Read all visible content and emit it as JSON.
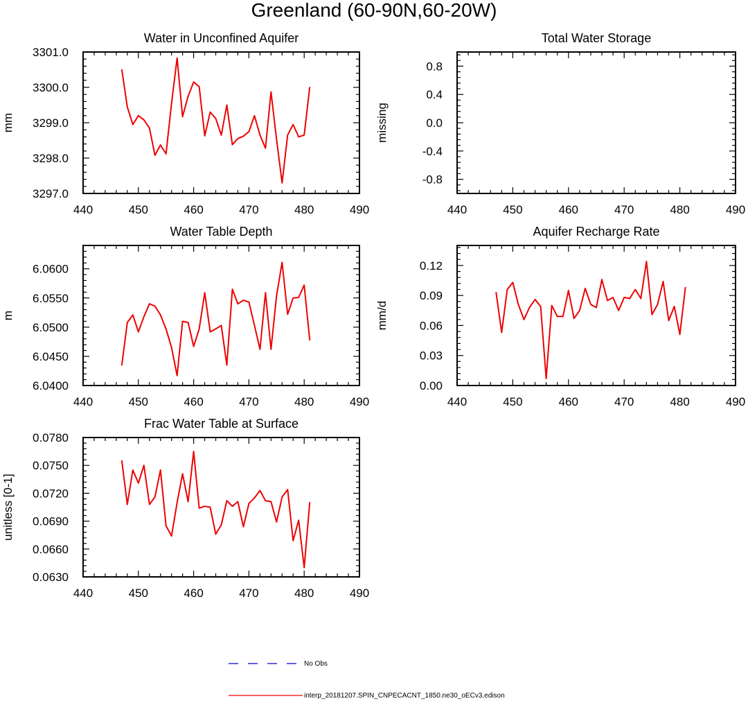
{
  "figure_title": "Greenland (60-90N,60-20W)",
  "legend": {
    "obs_label": "No Obs",
    "model_label": "interp_20181207.SPIN_CNPECACNT_1850.ne30_oECv3.edison",
    "obs_color": "#0000cc",
    "model_color": "#ee0000"
  },
  "chart_data": [
    {
      "type": "line",
      "title": "Water in Unconfined Aquifer",
      "ylabel": "mm",
      "xlabel": "",
      "xlim": [
        440,
        490
      ],
      "ylim": [
        3297.0,
        3301.0
      ],
      "xticks": [
        440,
        450,
        460,
        470,
        480,
        490
      ],
      "yticks": [
        3297.0,
        3298.0,
        3299.0,
        3300.0,
        3301.0
      ],
      "ytick_labels": [
        "3297.0",
        "3298.0",
        "3299.0",
        "3300.0",
        "3301.0"
      ],
      "x": [
        447,
        448,
        449,
        450,
        451,
        452,
        453,
        454,
        455,
        456,
        457,
        458,
        459,
        460,
        461,
        462,
        463,
        464,
        465,
        466,
        467,
        468,
        469,
        470,
        471,
        472,
        473,
        474,
        475,
        476,
        477,
        478,
        479,
        480,
        481
      ],
      "series": [
        {
          "name": "interp_20181207.SPIN_CNPECACNT_1850.ne30_oECv3.edison",
          "values": [
            3300.5,
            3299.45,
            3298.95,
            3299.2,
            3299.08,
            3298.85,
            3298.08,
            3298.37,
            3298.12,
            3299.55,
            3300.83,
            3299.17,
            3299.75,
            3300.15,
            3300.02,
            3298.63,
            3299.3,
            3299.12,
            3298.65,
            3299.5,
            3298.38,
            3298.55,
            3298.62,
            3298.75,
            3299.2,
            3298.65,
            3298.28,
            3299.87,
            3298.53,
            3297.3,
            3298.65,
            3298.95,
            3298.6,
            3298.65,
            3300.0
          ]
        }
      ]
    },
    {
      "type": "line",
      "title": "Total Water Storage",
      "ylabel": "missing",
      "xlabel": "",
      "xlim": [
        440,
        490
      ],
      "ylim": [
        -1.0,
        1.0
      ],
      "xticks": [
        440,
        450,
        460,
        470,
        480,
        490
      ],
      "yticks": [
        -0.8,
        -0.4,
        0.0,
        0.4,
        0.8
      ],
      "ytick_labels": [
        "-0.8",
        "-0.4",
        "0.0",
        "0.4",
        "0.8"
      ],
      "x": [],
      "series": []
    },
    {
      "type": "line",
      "title": "Water Table Depth",
      "ylabel": "m",
      "xlabel": "",
      "xlim": [
        440,
        490
      ],
      "ylim": [
        6.04,
        6.064
      ],
      "xticks": [
        440,
        450,
        460,
        470,
        480,
        490
      ],
      "yticks": [
        6.04,
        6.045,
        6.05,
        6.055,
        6.06
      ],
      "ytick_labels": [
        "6.0400",
        "6.0450",
        "6.0500",
        "6.0550",
        "6.0600"
      ],
      "x": [
        447,
        448,
        449,
        450,
        451,
        452,
        453,
        454,
        455,
        456,
        457,
        458,
        459,
        460,
        461,
        462,
        463,
        464,
        465,
        466,
        467,
        468,
        469,
        470,
        471,
        472,
        473,
        474,
        475,
        476,
        477,
        478,
        479,
        480,
        481
      ],
      "series": [
        {
          "name": "interp_20181207.SPIN_CNPECACNT_1850.ne30_oECv3.edison",
          "values": [
            6.0435,
            6.0508,
            6.0521,
            6.0492,
            6.0518,
            6.054,
            6.0536,
            6.0521,
            6.0497,
            6.0465,
            6.0417,
            6.051,
            6.0508,
            6.0467,
            6.0497,
            6.0559,
            6.0492,
            6.0497,
            6.0503,
            6.0435,
            6.0565,
            6.054,
            6.0546,
            6.0543,
            6.0503,
            6.0462,
            6.0559,
            6.0462,
            6.0554,
            6.0611,
            6.0522,
            6.055,
            6.0551,
            6.0572,
            6.0478
          ]
        }
      ]
    },
    {
      "type": "line",
      "title": "Aquifer Recharge Rate",
      "ylabel": "mm/d",
      "xlabel": "",
      "xlim": [
        440,
        490
      ],
      "ylim": [
        0.0,
        0.14
      ],
      "xticks": [
        440,
        450,
        460,
        470,
        480,
        490
      ],
      "yticks": [
        0.0,
        0.03,
        0.06,
        0.09,
        0.12
      ],
      "ytick_labels": [
        "0.00",
        "0.03",
        "0.06",
        "0.09",
        "0.12"
      ],
      "x": [
        447,
        448,
        449,
        450,
        451,
        452,
        453,
        454,
        455,
        456,
        457,
        458,
        459,
        460,
        461,
        462,
        463,
        464,
        465,
        466,
        467,
        468,
        469,
        470,
        471,
        472,
        473,
        474,
        475,
        476,
        477,
        478,
        479,
        480,
        481
      ],
      "series": [
        {
          "name": "interp_20181207.SPIN_CNPECACNT_1850.ne30_oECv3.edison",
          "values": [
            0.093,
            0.053,
            0.096,
            0.103,
            0.081,
            0.066,
            0.078,
            0.086,
            0.079,
            0.007,
            0.08,
            0.069,
            0.069,
            0.095,
            0.067,
            0.075,
            0.097,
            0.081,
            0.078,
            0.106,
            0.085,
            0.088,
            0.075,
            0.088,
            0.087,
            0.096,
            0.087,
            0.124,
            0.071,
            0.081,
            0.104,
            0.065,
            0.079,
            0.051,
            0.098
          ]
        }
      ]
    },
    {
      "type": "line",
      "title": "Frac Water Table at Surface",
      "ylabel": "unitless [0-1]",
      "xlabel": "",
      "xlim": [
        440,
        490
      ],
      "ylim": [
        0.063,
        0.078
      ],
      "xticks": [
        440,
        450,
        460,
        470,
        480,
        490
      ],
      "yticks": [
        0.063,
        0.066,
        0.069,
        0.072,
        0.075,
        0.078
      ],
      "ytick_labels": [
        "0.0630",
        "0.0660",
        "0.0690",
        "0.0720",
        "0.0750",
        "0.0780"
      ],
      "x": [
        447,
        448,
        449,
        450,
        451,
        452,
        453,
        454,
        455,
        456,
        457,
        458,
        459,
        460,
        461,
        462,
        463,
        464,
        465,
        466,
        467,
        468,
        469,
        470,
        471,
        472,
        473,
        474,
        475,
        476,
        477,
        478,
        479,
        480,
        481
      ],
      "series": [
        {
          "name": "interp_20181207.SPIN_CNPECACNT_1850.ne30_oECv3.edison",
          "values": [
            0.0755,
            0.0708,
            0.0745,
            0.0731,
            0.075,
            0.0708,
            0.0716,
            0.0745,
            0.0685,
            0.0674,
            0.071,
            0.0741,
            0.0711,
            0.0765,
            0.0704,
            0.0706,
            0.0705,
            0.0676,
            0.0686,
            0.0712,
            0.0706,
            0.0711,
            0.0684,
            0.0709,
            0.0715,
            0.0723,
            0.0712,
            0.0711,
            0.0689,
            0.0716,
            0.0724,
            0.0669,
            0.0691,
            0.064,
            0.071
          ]
        }
      ]
    }
  ]
}
